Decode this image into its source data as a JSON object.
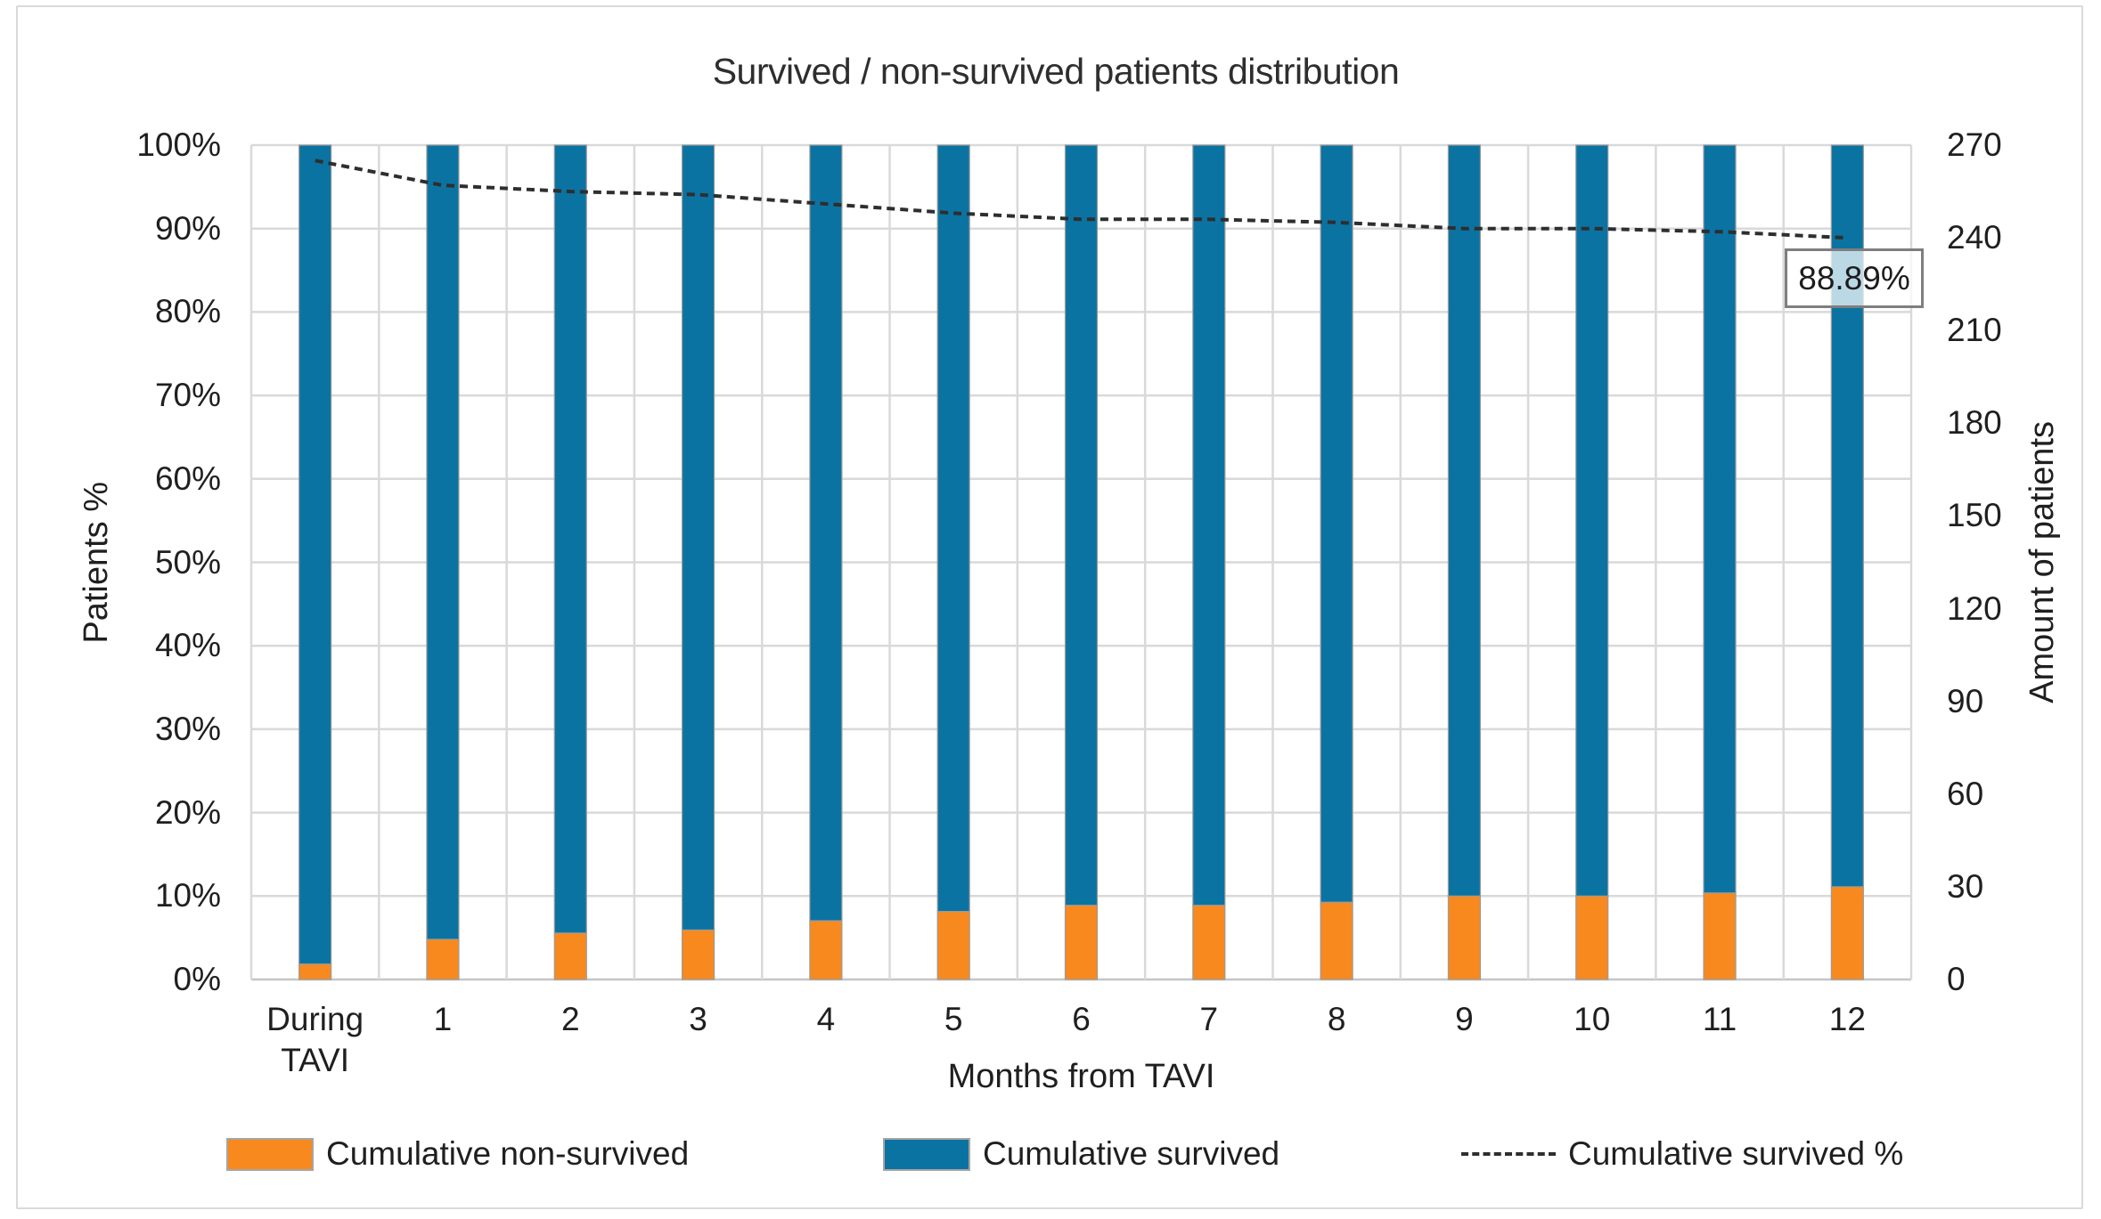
{
  "chart_data": {
    "type": "bar",
    "subtype": "stacked-100-percent-with-line",
    "title": "Survived / non-survived patients distribution",
    "categories": [
      "During TAVI",
      "1",
      "2",
      "3",
      "4",
      "5",
      "6",
      "7",
      "8",
      "9",
      "10",
      "11",
      "12"
    ],
    "series": [
      {
        "name": "Cumulative non-survived",
        "type": "bar",
        "color": "#F8891E",
        "values_pct": [
          1.85,
          4.81,
          5.56,
          5.93,
          7.04,
          8.15,
          8.89,
          8.89,
          9.26,
          10.0,
          10.0,
          10.37,
          11.11
        ]
      },
      {
        "name": "Cumulative survived",
        "type": "bar",
        "color": "#0B73A2",
        "values_pct": [
          98.15,
          95.19,
          94.44,
          94.07,
          92.96,
          91.85,
          91.11,
          91.11,
          90.74,
          90.0,
          90.0,
          89.63,
          88.89
        ]
      },
      {
        "name": "Cumulative survived %",
        "type": "line",
        "style": "dashed",
        "color": "#2E2E2E",
        "values_pct": [
          98.15,
          95.19,
          94.44,
          94.07,
          92.96,
          91.85,
          91.11,
          91.11,
          90.74,
          90.0,
          90.0,
          89.63,
          88.89
        ]
      }
    ],
    "xlabel": "Months from TAVI",
    "ylabel_left": "Patients %",
    "ylabel_right": "Amount of patients",
    "left_axis_ticks": [
      "0%",
      "10%",
      "20%",
      "30%",
      "40%",
      "50%",
      "60%",
      "70%",
      "80%",
      "90%",
      "100%"
    ],
    "right_axis_ticks": [
      "0",
      "30",
      "60",
      "90",
      "120",
      "150",
      "180",
      "210",
      "240",
      "270"
    ],
    "left_ylim": [
      0,
      100
    ],
    "right_ylim": [
      0,
      270
    ],
    "grid": true,
    "legend_position": "bottom",
    "data_label": {
      "text": "88.89%",
      "series": "Cumulative survived %",
      "category": "12",
      "value": 88.89
    },
    "colors": {
      "non_survived_bar": "#F8891E",
      "survived_bar": "#0B73A2",
      "dashed_line": "#2E2E2E",
      "gridline": "#D9D9D9",
      "axis_line": "#C6C6C6",
      "text": "#1F1F1F",
      "frame_border": "#DADADA"
    }
  }
}
